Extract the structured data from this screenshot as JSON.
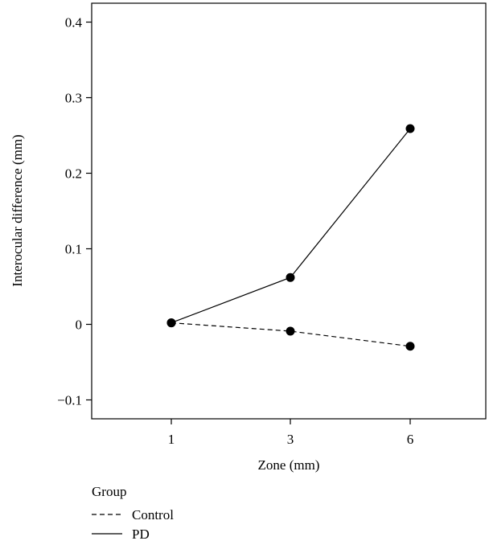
{
  "chart_data": {
    "type": "line",
    "xlabel": "Zone (mm)",
    "ylabel": "Interocular difference (mm)",
    "categories": [
      "1",
      "3",
      "6"
    ],
    "x": [
      1,
      3,
      6
    ],
    "ylim": [
      -0.125,
      0.425
    ],
    "yticks": [
      -0.1,
      0,
      0.1,
      0.2,
      0.3,
      0.4
    ],
    "ytick_labels": [
      "−0.1",
      "0",
      "0.1",
      "0.2",
      "0.3",
      "0.4"
    ],
    "grid": false,
    "legend": {
      "title": "Group",
      "placement": "bottom-left"
    },
    "series": [
      {
        "name": "Control",
        "line_style": "dashed",
        "values": [
          0.002,
          -0.009,
          -0.029
        ]
      },
      {
        "name": "PD",
        "line_style": "solid",
        "values": [
          0.002,
          0.062,
          0.259
        ]
      }
    ]
  }
}
